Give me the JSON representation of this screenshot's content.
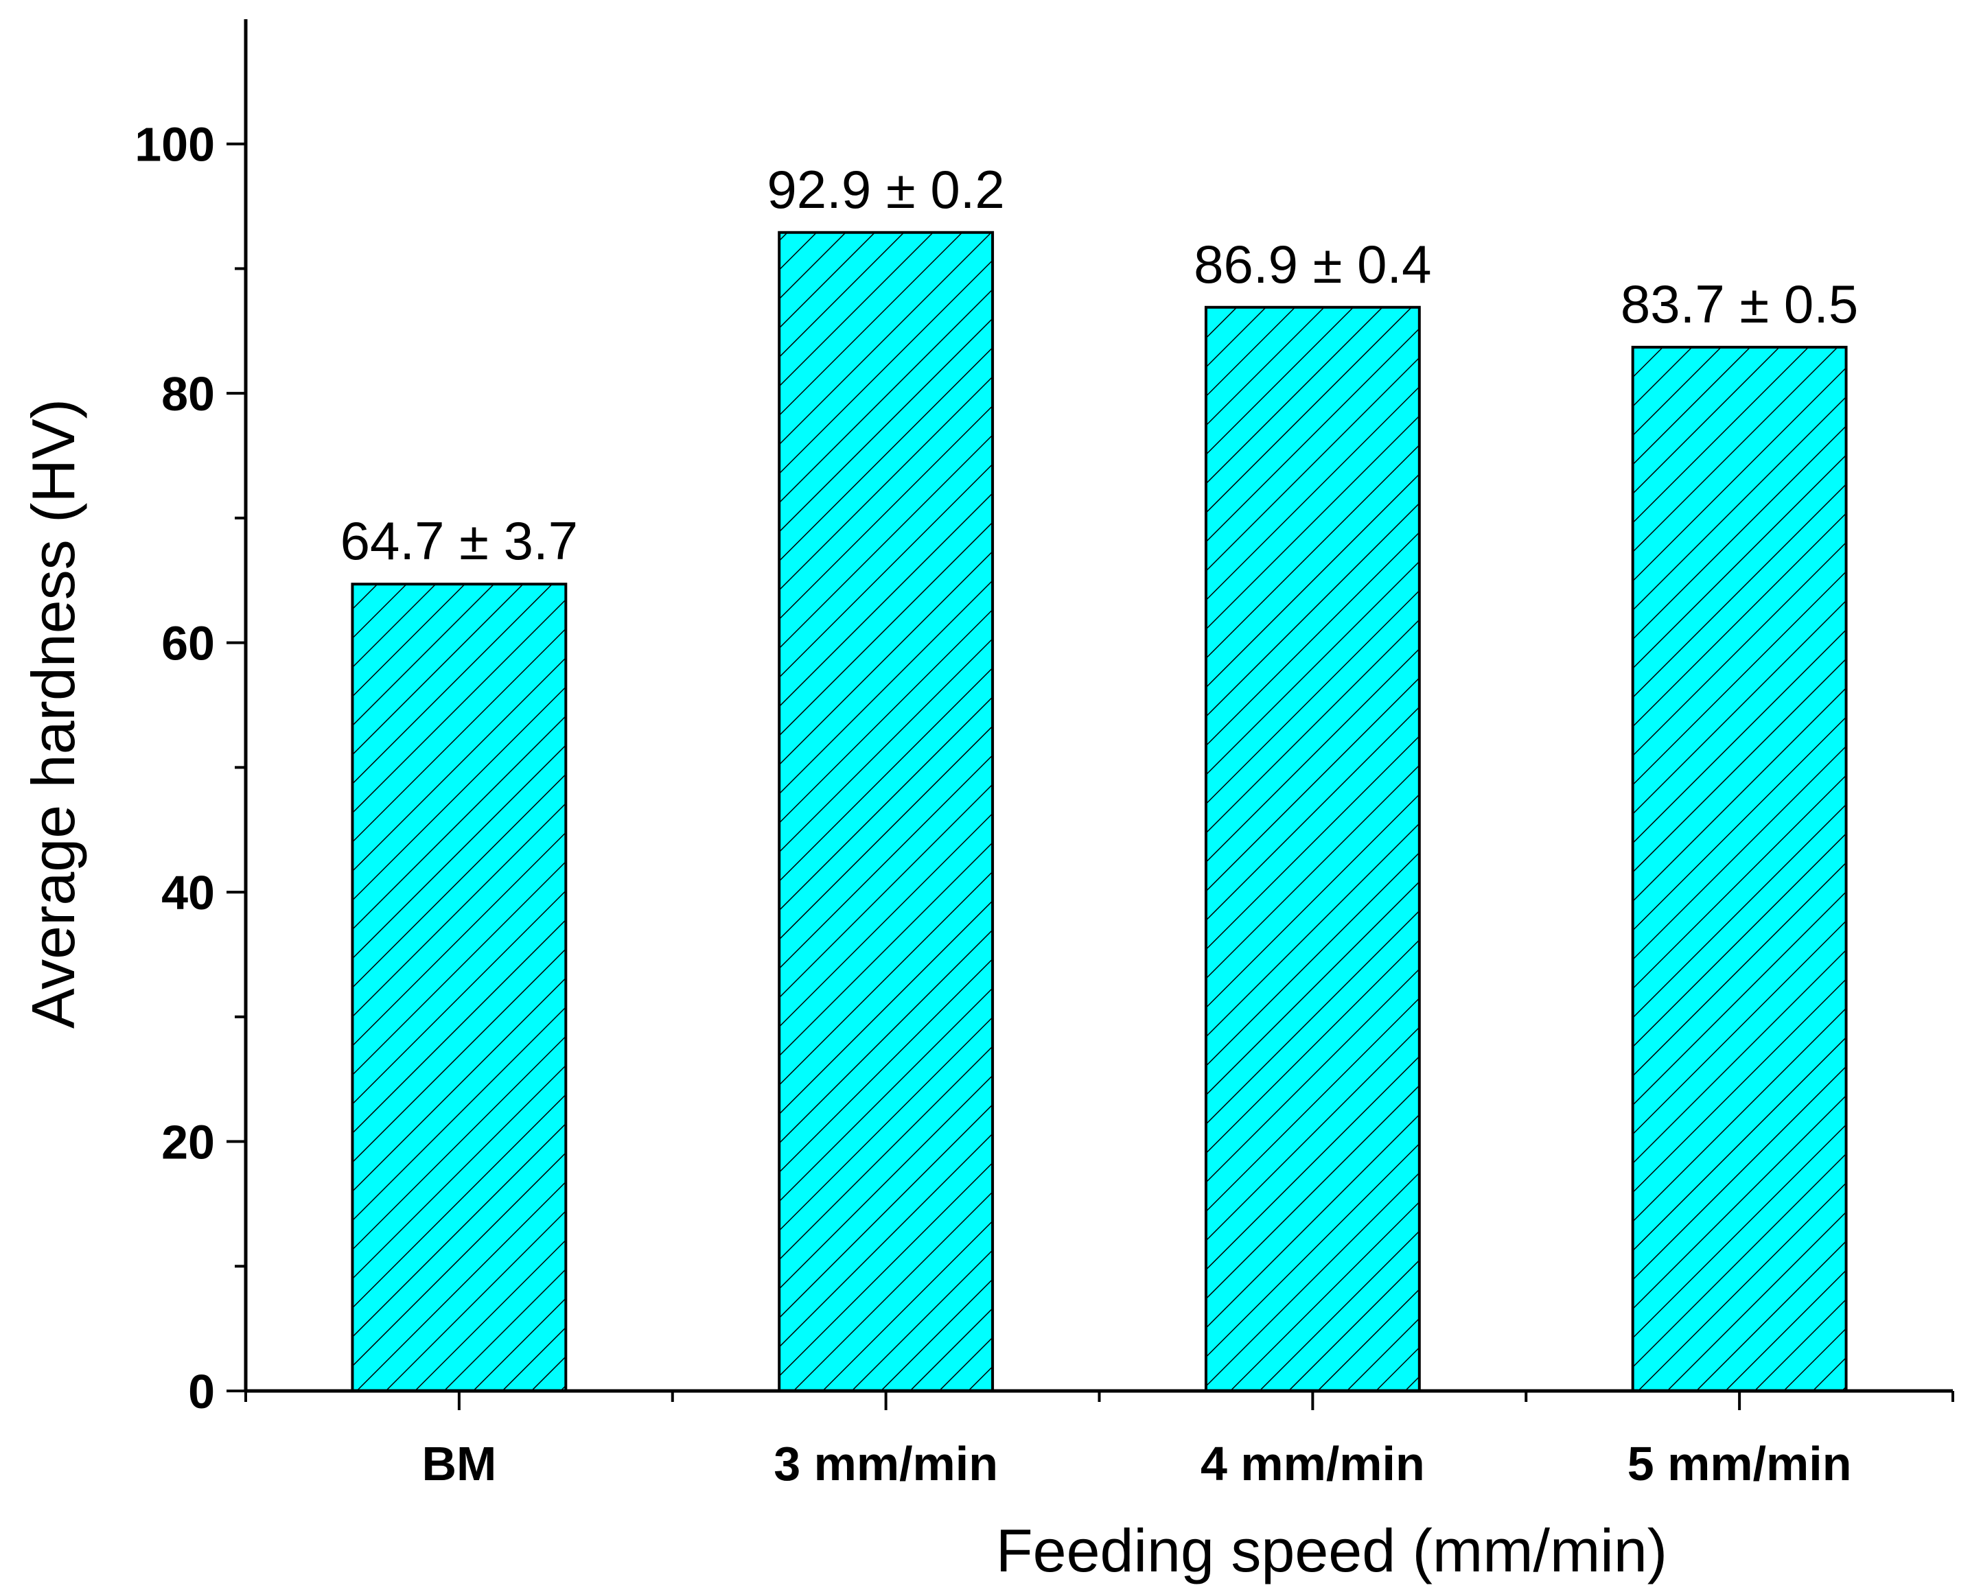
{
  "chart_data": {
    "type": "bar",
    "categories": [
      "BM",
      "3 mm/min",
      "4 mm/min",
      "5 mm/min"
    ],
    "values": [
      64.7,
      92.9,
      86.9,
      83.7
    ],
    "errors": [
      3.7,
      0.2,
      0.4,
      0.5
    ],
    "data_labels": [
      "64.7 ± 3.7",
      "92.9 ± 0.2",
      "86.9 ± 0.4",
      "83.7 ± 0.5"
    ],
    "title": "",
    "xlabel": "Feeding speed (mm/min)",
    "ylabel": "Average hardness (HV)",
    "ylim": [
      0,
      110
    ],
    "yticks": [
      0,
      20,
      40,
      60,
      80,
      100
    ],
    "grid": false,
    "bar_fill": "#00FFFF",
    "bar_pattern": "diagonal-hatch",
    "bar_edge": "#000000"
  }
}
